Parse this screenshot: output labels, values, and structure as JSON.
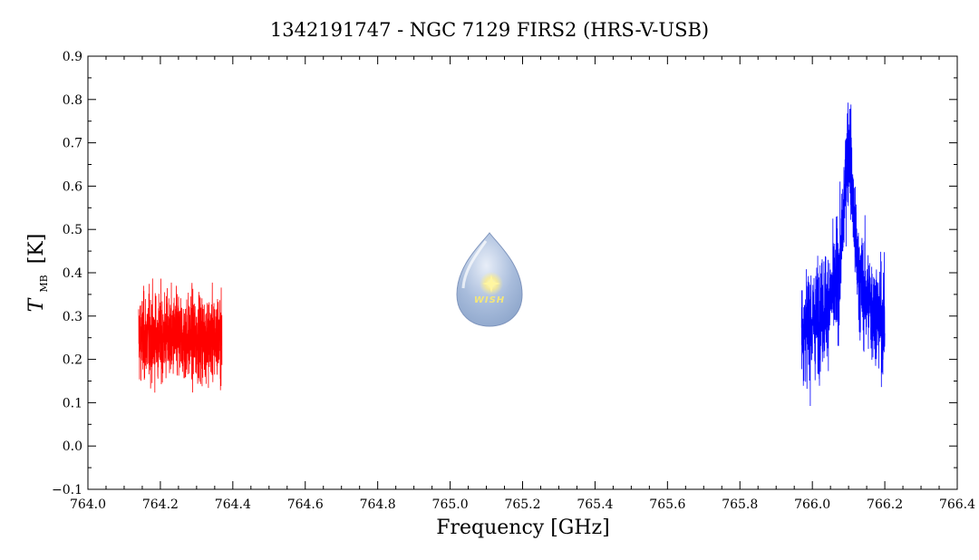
{
  "chart_data": {
    "type": "line",
    "title": "1342191747 - NGC 7129 FIRS2 (HRS-V-USB)",
    "xlabel": "Frequency [GHz]",
    "ylabel": {
      "symbol": "T",
      "subscript": "MB",
      "unit": "[K]"
    },
    "xlim": [
      764.0,
      766.4
    ],
    "ylim": [
      -0.1,
      0.9
    ],
    "xticks": [
      "764.0",
      "764.2",
      "764.4",
      "764.6",
      "764.8",
      "765.0",
      "765.2",
      "765.4",
      "765.6",
      "765.8",
      "766.0",
      "766.2",
      "766.4"
    ],
    "yticks": [
      "-0.1",
      "0.0",
      "0.1",
      "0.2",
      "0.3",
      "0.4",
      "0.5",
      "0.6",
      "0.7",
      "0.8",
      "0.9"
    ],
    "grid": false,
    "series": [
      {
        "color": "#ff0000",
        "x_range": [
          764.14,
          764.37
        ],
        "baseline": 0.25,
        "noise_range": [
          0.0,
          0.46
        ],
        "description_values": {
          "mean": 0.25,
          "min": 0.0,
          "max": 0.46
        }
      },
      {
        "color": "#0000ff",
        "x_range": [
          765.97,
          766.2
        ],
        "baseline": 0.27,
        "peak": {
          "x": 766.1,
          "y": 0.81
        },
        "noise_range": [
          -0.005,
          0.81
        ],
        "description_values": {
          "mean": 0.32,
          "min": -0.005,
          "max": 0.81
        }
      }
    ],
    "logo": {
      "text": "WISH"
    }
  }
}
